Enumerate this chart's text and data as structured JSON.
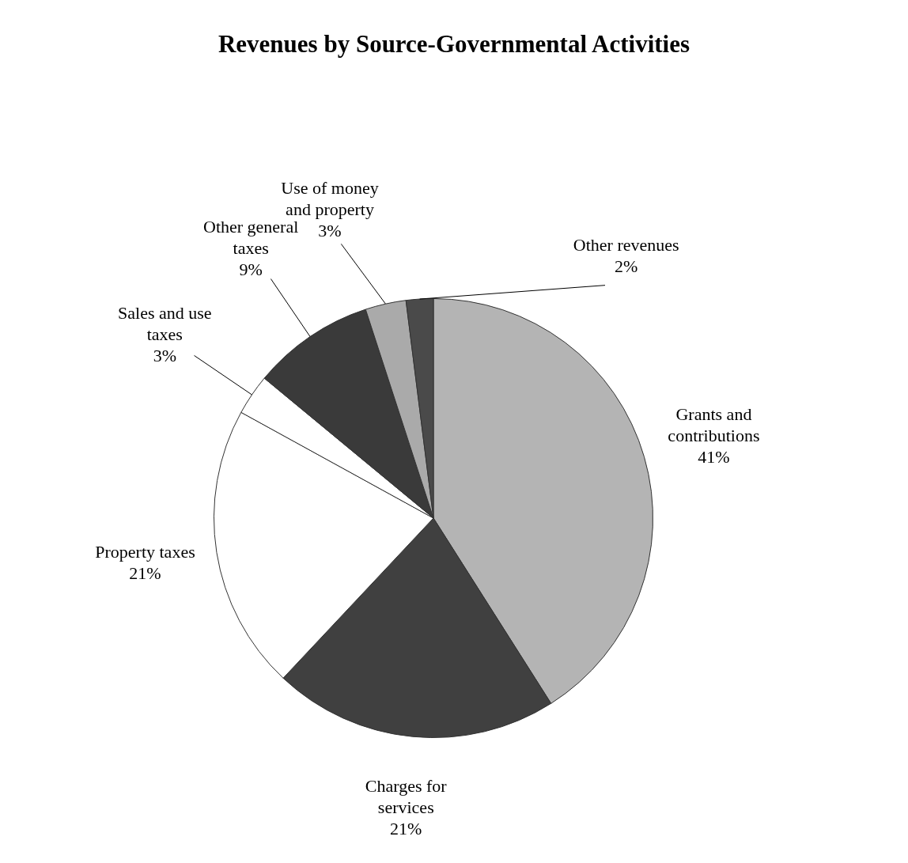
{
  "chart_data": {
    "type": "pie",
    "title": "Revenues by Source-Governmental Activities",
    "categories": [
      "Grants and contributions",
      "Charges for services",
      "Property taxes",
      "Sales and use taxes",
      "Other general taxes",
      "Use of money and property",
      "Other revenues"
    ],
    "values": [
      41,
      21,
      21,
      3,
      9,
      3,
      2
    ],
    "value_labels": [
      "41%",
      "21%",
      "21%",
      "3%",
      "9%",
      "3%",
      "2%"
    ],
    "colors": [
      "#b4b4b4",
      "#404040",
      "#ffffff",
      "#ffffff",
      "#3a3a3a",
      "#aaaaaa",
      "#4a4a4a"
    ],
    "legend": false
  }
}
